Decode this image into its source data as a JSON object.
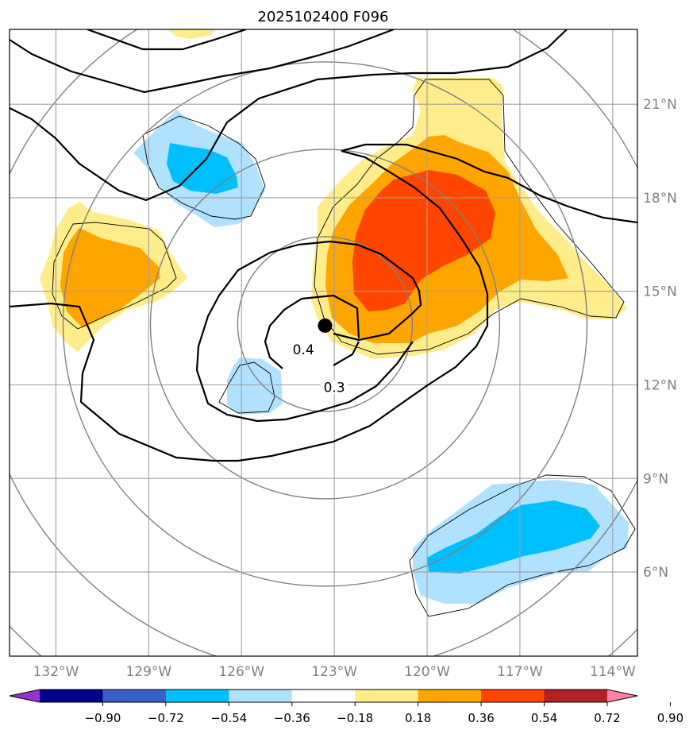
{
  "title": "2025102400 F096",
  "map": {
    "lon_range": [
      -133.5,
      -113.2
    ],
    "lat_range": [
      3.3,
      23.4
    ],
    "lon_ticks": [
      {
        "value": -132,
        "label": "132°W"
      },
      {
        "value": -129,
        "label": "129°W"
      },
      {
        "value": -126,
        "label": "126°W"
      },
      {
        "value": -123,
        "label": "123°W"
      },
      {
        "value": -120,
        "label": "120°W"
      },
      {
        "value": -117,
        "label": "117°W"
      },
      {
        "value": -114,
        "label": "114°W"
      }
    ],
    "lat_ticks": [
      {
        "value": 6,
        "label": "6°N"
      },
      {
        "value": 9,
        "label": "9°N"
      },
      {
        "value": 12,
        "label": "12°N"
      },
      {
        "value": 15,
        "label": "15°N"
      },
      {
        "value": 18,
        "label": "18°N"
      },
      {
        "value": 21,
        "label": "21°N"
      }
    ],
    "gridlines": true,
    "center_marker": {
      "lon": -123.3,
      "lat": 13.9
    },
    "contour_labels": [
      {
        "text": "0.4",
        "lon": -124.0,
        "lat": 13.0
      },
      {
        "text": "0.3",
        "lon": -123.0,
        "lat": 11.8
      }
    ]
  },
  "colorbar": {
    "levels": [
      "−0.90",
      "−0.72",
      "−0.54",
      "−0.36",
      "−0.18",
      "0.18",
      "0.36",
      "0.54",
      "0.72",
      "0.90"
    ],
    "colors": [
      "#9932cc",
      "#00008b",
      "#3a5fcd",
      "#00bfff",
      "#b0e2ff",
      "#ffffff",
      "#ffec8b",
      "#ffa500",
      "#ff4500",
      "#b22222",
      "#ff82ab"
    ]
  }
}
